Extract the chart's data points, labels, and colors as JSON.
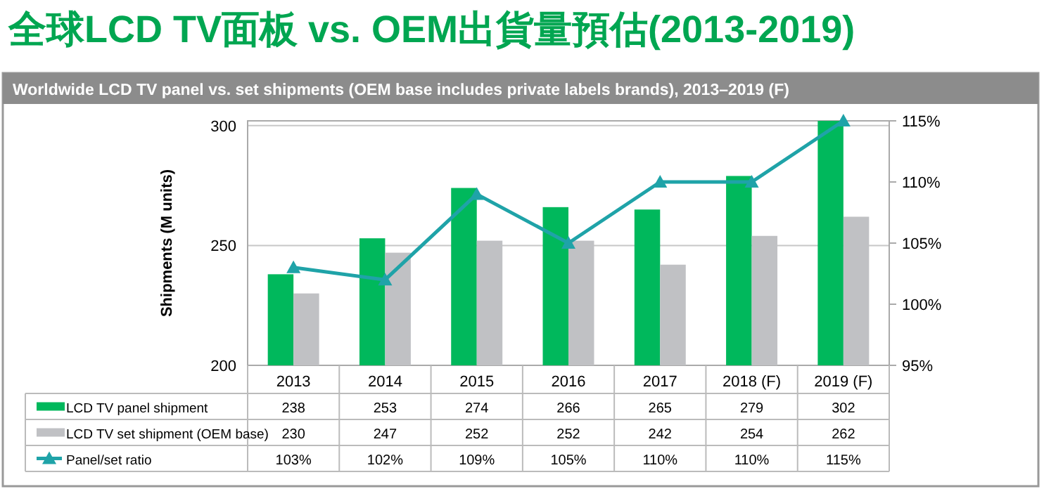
{
  "chart_data": {
    "type": "bar",
    "title": "全球LCD TV面板 vs. OEM出貨量預估(2013-2019)",
    "subtitle": "Worldwide LCD TV panel vs. set shipments (OEM base includes private labels brands), 2013–2019 (F)",
    "ylabel": "Shipments (M units)",
    "categories": [
      "2013",
      "2014",
      "2015",
      "2016",
      "2017",
      "2018 (F)",
      "2019 (F)"
    ],
    "series": [
      {
        "name": "LCD TV panel shipment",
        "color": "#00b85c",
        "values": [
          238,
          253,
          274,
          266,
          265,
          279,
          302
        ],
        "value_labels": [
          "238",
          "253",
          "274",
          "266",
          "265",
          "279",
          "302"
        ]
      },
      {
        "name": "LCD TV set shipment (OEM base)",
        "color": "#c0c1c4",
        "values": [
          230,
          247,
          252,
          252,
          242,
          254,
          262
        ],
        "value_labels": [
          "230",
          "247",
          "252",
          "252",
          "242",
          "254",
          "262"
        ]
      },
      {
        "name": "Panel/set ratio",
        "type": "line",
        "axis": "y2",
        "color": "#1fa3a8",
        "values": [
          103,
          102,
          109,
          105,
          110,
          110,
          115
        ],
        "value_labels": [
          "103%",
          "102%",
          "109%",
          "105%",
          "110%",
          "110%",
          "115%"
        ]
      }
    ],
    "ylim": [
      200,
      302
    ],
    "yticks": [
      200,
      250,
      300
    ],
    "y2lim": [
      95,
      115
    ],
    "y2ticks": [
      {
        "value": 95,
        "label": "95%"
      },
      {
        "value": 100,
        "label": "100%"
      },
      {
        "value": 105,
        "label": "105%"
      },
      {
        "value": 110,
        "label": "110%"
      },
      {
        "value": 115,
        "label": "115%"
      }
    ],
    "grid": "y",
    "legend": "bottom",
    "marker": "triangle"
  }
}
